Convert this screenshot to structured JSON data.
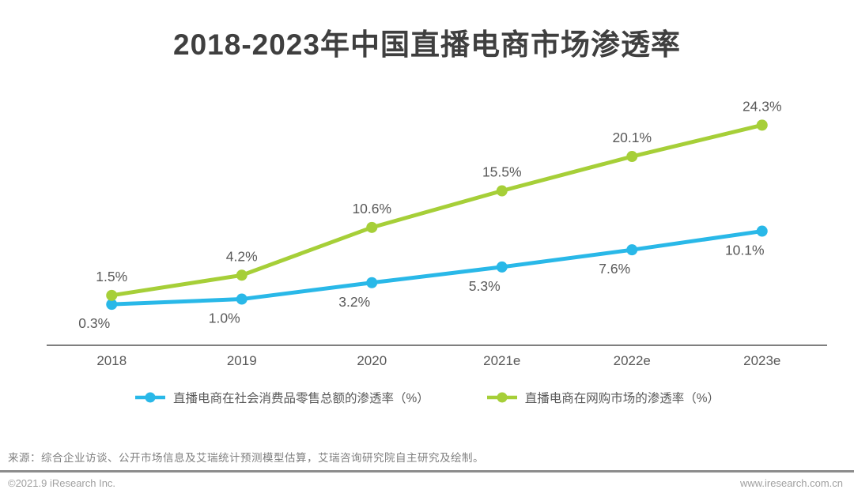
{
  "title": "2018-2023年中国直播电商市场渗透率",
  "chart_data": {
    "type": "line",
    "categories": [
      "2018",
      "2019",
      "2020",
      "2021e",
      "2022e",
      "2023e"
    ],
    "series": [
      {
        "id": "retail-total",
        "name": "直播电商在社会消费品零售总额的渗透率（%）",
        "color": "#29b8e8",
        "values": [
          0.3,
          1.0,
          3.2,
          5.3,
          7.6,
          10.1
        ],
        "label_position": "below"
      },
      {
        "id": "online-shopping",
        "name": "直播电商在网购市场的渗透率（%）",
        "color": "#a6cf38",
        "values": [
          1.5,
          4.2,
          10.6,
          15.5,
          20.1,
          24.3
        ],
        "label_position": "above"
      }
    ],
    "value_suffix": "%",
    "ylim": [
      0,
      26
    ],
    "grid": false,
    "y_axis_visible": false,
    "x_axis_color": "#7f7f7f",
    "value_label_color": "#595959",
    "tick_label_color": "#595959",
    "legend_position": "bottom"
  },
  "source_note": "来源：综合企业访谈、公开市场信息及艾瑞统计预测模型估算，艾瑞咨询研究院自主研究及绘制。",
  "footer": {
    "left": "©2021.9 iResearch Inc.",
    "right": "www.iresearch.com.cn"
  }
}
